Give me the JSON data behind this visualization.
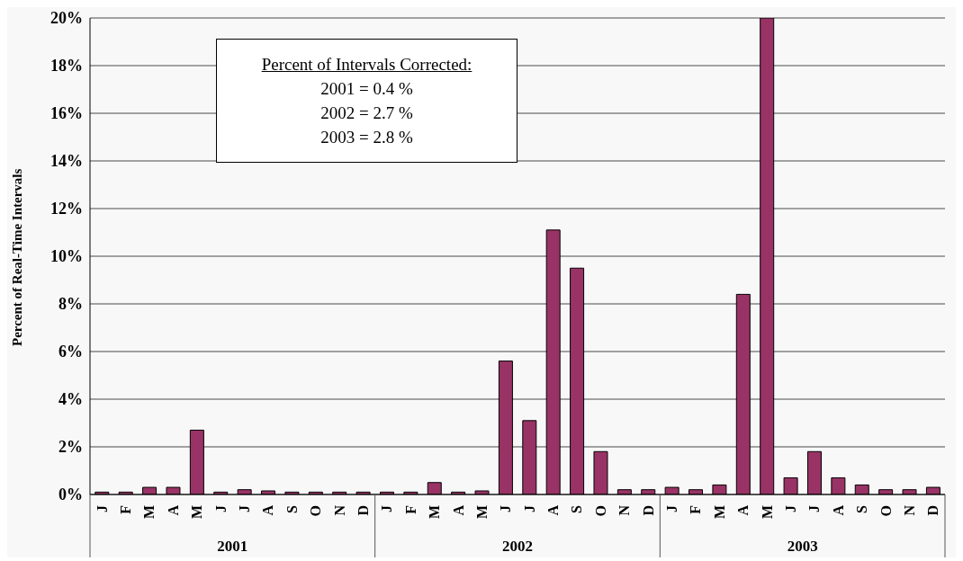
{
  "chart_data": {
    "type": "bar",
    "ylabel": "Percent of Real-Time Intervals",
    "categories": [
      "J",
      "F",
      "M",
      "A",
      "M",
      "J",
      "J",
      "A",
      "S",
      "O",
      "N",
      "D",
      "J",
      "F",
      "M",
      "A",
      "M",
      "J",
      "J",
      "A",
      "S",
      "O",
      "N",
      "D",
      "J",
      "F",
      "M",
      "A",
      "M",
      "J",
      "J",
      "A",
      "S",
      "O",
      "N",
      "D"
    ],
    "values": [
      0.1,
      0.1,
      0.3,
      0.3,
      2.7,
      0.1,
      0.2,
      0.15,
      0.1,
      0.1,
      0.1,
      0.1,
      0.1,
      0.1,
      0.5,
      0.1,
      0.15,
      5.6,
      3.1,
      11.1,
      9.5,
      1.8,
      0.2,
      0.2,
      0.3,
      0.2,
      0.4,
      8.4,
      20.0,
      0.7,
      1.8,
      0.7,
      0.4,
      0.2,
      0.2,
      0.3
    ],
    "color": "#993366",
    "ylim": [
      0,
      20
    ],
    "yticks": [
      {
        "value": 0,
        "label": "0%"
      },
      {
        "value": 2,
        "label": "2%"
      },
      {
        "value": 4,
        "label": "4%"
      },
      {
        "value": 6,
        "label": "6%"
      },
      {
        "value": 8,
        "label": "8%"
      },
      {
        "value": 10,
        "label": "10%"
      },
      {
        "value": 12,
        "label": "12%"
      },
      {
        "value": 14,
        "label": "14%"
      },
      {
        "value": 16,
        "label": "16%"
      },
      {
        "value": 18,
        "label": "18%"
      },
      {
        "value": 20,
        "label": "20%"
      }
    ],
    "grid": "y",
    "legend": false,
    "annotations": [
      "Percent of Intervals Corrected:",
      "2001 = 0.4 %",
      "2002 = 2.7 %",
      "2003 = 2.8 %",
      "2001",
      "2002",
      "2003"
    ]
  }
}
